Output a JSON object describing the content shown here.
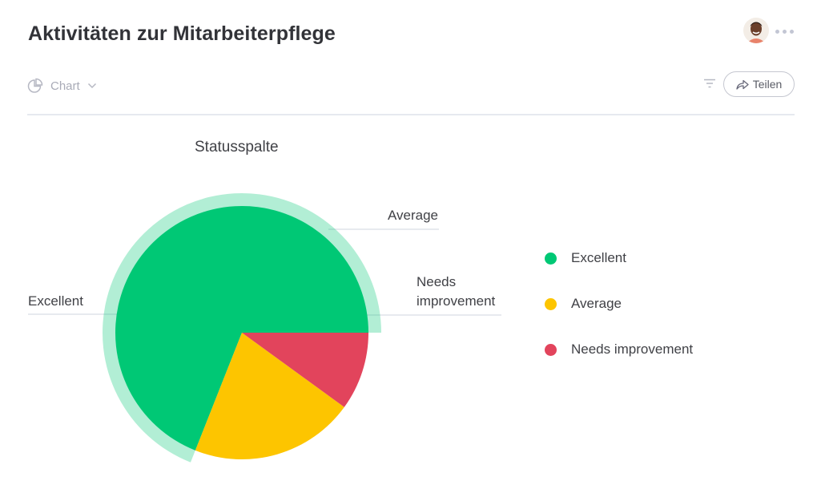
{
  "header": {
    "title": "Aktivitäten zur Mitarbeiterpflege",
    "view_label": "Chart",
    "share_label": "Teilen"
  },
  "icons": {
    "view": "pie-chart-icon",
    "view_dropdown": "chevron-down-icon",
    "filter": "filter-icon",
    "share": "share-arrow-icon",
    "more": "more-dots-icon"
  },
  "chart_data": {
    "type": "pie",
    "title": "Statusspalte",
    "categories": [
      "Excellent",
      "Average",
      "Needs improvement"
    ],
    "values": [
      0.69,
      0.21,
      0.1
    ],
    "colors": [
      "#00c875",
      "#fdc500",
      "#e2445c"
    ],
    "highlighted": "Excellent",
    "legend": "right",
    "slice_labels": {
      "excellent": "Excellent",
      "average": "Average",
      "needs_line1": "Needs",
      "needs_line2": "improvement"
    }
  }
}
